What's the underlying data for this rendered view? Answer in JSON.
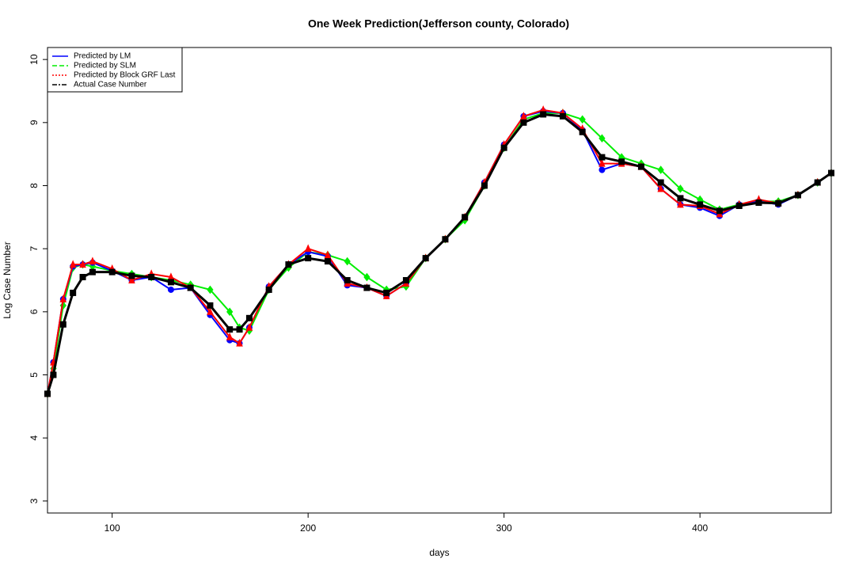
{
  "chart_data": {
    "type": "line",
    "title": "One Week Prediction(Jefferson county, Colorado)",
    "x_label": "days",
    "y_label": "Log Case Number",
    "x": [
      67,
      70,
      75,
      80,
      85,
      90,
      100,
      110,
      120,
      130,
      140,
      150,
      160,
      165,
      170,
      180,
      190,
      200,
      210,
      220,
      230,
      240,
      250,
      260,
      270,
      280,
      290,
      300,
      310,
      320,
      330,
      340,
      350,
      360,
      370,
      380,
      390,
      400,
      410,
      420,
      430,
      440,
      450,
      460,
      467
    ],
    "series": [
      {
        "name": "Predicted by LM",
        "color": "#0000ff",
        "marker": "circle",
        "linestyle": "solid",
        "values": [
          4.7,
          5.2,
          6.2,
          6.72,
          6.75,
          6.78,
          6.65,
          6.5,
          6.55,
          6.35,
          6.38,
          5.95,
          5.55,
          5.5,
          5.75,
          6.4,
          6.75,
          6.95,
          6.88,
          6.42,
          6.38,
          6.25,
          6.45,
          6.85,
          7.15,
          7.5,
          8.05,
          8.65,
          9.1,
          9.18,
          9.15,
          8.88,
          8.25,
          8.35,
          8.3,
          7.95,
          7.7,
          7.65,
          7.52,
          7.7,
          7.75,
          7.7,
          7.85,
          8.05,
          8.2
        ]
      },
      {
        "name": "Predicted by SLM",
        "color": "#00ee00",
        "marker": "diamond",
        "linestyle": "dashed",
        "values": [
          4.7,
          5.1,
          6.1,
          6.7,
          6.75,
          6.72,
          6.65,
          6.6,
          6.55,
          6.5,
          6.43,
          6.35,
          6.0,
          5.75,
          5.7,
          6.35,
          6.7,
          6.95,
          6.9,
          6.8,
          6.55,
          6.35,
          6.4,
          6.85,
          7.15,
          7.45,
          8.0,
          8.6,
          9.05,
          9.15,
          9.15,
          9.05,
          8.75,
          8.45,
          8.35,
          8.25,
          7.95,
          7.78,
          7.62,
          7.7,
          7.75,
          7.75,
          7.85,
          8.05,
          8.2
        ]
      },
      {
        "name": "Predicted by Block GRF Last",
        "color": "#ff0000",
        "marker": "triangle",
        "linestyle": "dotted",
        "values": [
          4.7,
          5.2,
          6.2,
          6.75,
          6.75,
          6.8,
          6.68,
          6.5,
          6.6,
          6.55,
          6.38,
          6.0,
          5.6,
          5.5,
          5.75,
          6.4,
          6.75,
          7.0,
          6.9,
          6.45,
          6.38,
          6.25,
          6.45,
          6.85,
          7.15,
          7.5,
          8.05,
          8.65,
          9.1,
          9.2,
          9.15,
          8.9,
          8.35,
          8.35,
          8.3,
          7.95,
          7.7,
          7.68,
          7.55,
          7.7,
          7.78,
          7.72,
          7.85,
          8.05,
          8.2
        ]
      },
      {
        "name": "Actual Case Number",
        "color": "#000000",
        "marker": "square",
        "linestyle": "dotdash",
        "values": [
          4.7,
          5.0,
          5.8,
          6.3,
          6.55,
          6.63,
          6.63,
          6.57,
          6.55,
          6.47,
          6.38,
          6.1,
          5.72,
          5.72,
          5.9,
          6.35,
          6.75,
          6.85,
          6.8,
          6.5,
          6.38,
          6.3,
          6.5,
          6.85,
          7.15,
          7.5,
          8.0,
          8.6,
          9.0,
          9.13,
          9.1,
          8.85,
          8.45,
          8.38,
          8.3,
          8.05,
          7.8,
          7.7,
          7.6,
          7.68,
          7.73,
          7.72,
          7.85,
          8.05,
          8.2
        ]
      }
    ],
    "draw_order": [
      1,
      0,
      2,
      3
    ],
    "xlim": [
      67,
      467
    ],
    "xticks": [
      100,
      200,
      300,
      400
    ],
    "ylim": [
      2.81,
      10.19
    ],
    "yticks": [
      3,
      4,
      5,
      6,
      7,
      8,
      9,
      10
    ],
    "legend": "top-left"
  }
}
